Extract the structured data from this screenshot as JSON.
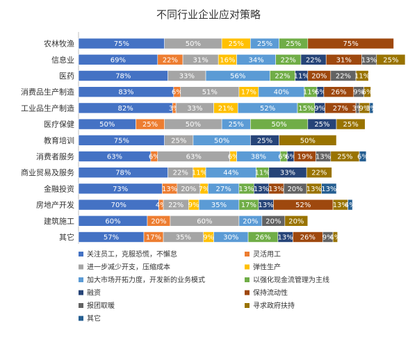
{
  "chart_data": {
    "type": "bar",
    "stacked": true,
    "orientation": "horizontal",
    "title": "不同行业企业应对策略",
    "categories": [
      "农林牧渔",
      "信息业",
      "医药",
      "消费品生产制造",
      "工业品生产制造",
      "医疗保健",
      "教育培训",
      "消费者服务",
      "商业贸易及服务",
      "金融投资",
      "房地产开发",
      "建筑施工",
      "其它"
    ],
    "series": [
      {
        "name": "关注员工，克服恐慌，不懈怠",
        "color": "#4472C4",
        "values": [
          75,
          69,
          78,
          83,
          82,
          50,
          75,
          63,
          78,
          73,
          70,
          60,
          57
        ]
      },
      {
        "name": "灵活用工",
        "color": "#ED7D31",
        "values": [
          0,
          22,
          0,
          6,
          3,
          25,
          0,
          6,
          0,
          13,
          4,
          20,
          17
        ]
      },
      {
        "name": "进一步减少开支，压缩成本",
        "color": "#A5A5A5",
        "values": [
          50,
          31,
          33,
          51,
          33,
          50,
          25,
          63,
          22,
          20,
          22,
          60,
          35
        ]
      },
      {
        "name": "弹性生产",
        "color": "#FFC000",
        "values": [
          25,
          16,
          0,
          17,
          21,
          0,
          0,
          6,
          11,
          7,
          9,
          0,
          9
        ]
      },
      {
        "name": "加大市场开拓力度，开发新的业务模式",
        "color": "#5B9BD5",
        "values": [
          25,
          34,
          56,
          40,
          52,
          25,
          50,
          38,
          44,
          27,
          35,
          20,
          30
        ]
      },
      {
        "name": "以强化现金流管理为主线",
        "color": "#70AD47",
        "values": [
          25,
          22,
          22,
          11,
          15,
          50,
          0,
          6,
          11,
          13,
          17,
          0,
          26
        ]
      },
      {
        "name": "融资",
        "color": "#264478",
        "values": [
          0,
          22,
          11,
          6,
          9,
          25,
          25,
          6,
          33,
          13,
          13,
          0,
          13
        ]
      },
      {
        "name": "保持流动性",
        "color": "#9E480E",
        "values": [
          75,
          31,
          20,
          26,
          27,
          0,
          0,
          19,
          0,
          13,
          52,
          0,
          26
        ]
      },
      {
        "name": "报团取暖",
        "color": "#636363",
        "values": [
          0,
          13,
          22,
          9,
          3,
          0,
          0,
          13,
          0,
          20,
          0,
          20,
          9
        ]
      },
      {
        "name": "寻求政府扶持",
        "color": "#997300",
        "values": [
          0,
          25,
          11,
          6,
          9,
          25,
          50,
          25,
          22,
          13,
          13,
          20,
          4
        ]
      },
      {
        "name": "其它",
        "color": "#255E91",
        "values": [
          0,
          0,
          0,
          0,
          3,
          0,
          0,
          6,
          0,
          13,
          4,
          0,
          0
        ]
      }
    ],
    "grid": false,
    "legend_position": "bottom"
  }
}
